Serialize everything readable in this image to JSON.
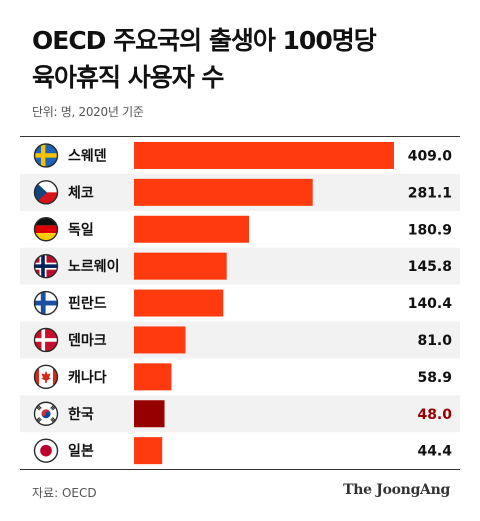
{
  "title_lines": [
    "OECD 주요국의 출생아 100명당",
    "육아휴직 사용자 수"
  ],
  "subtitle": "단위: 명, 2020년 기준",
  "source": "자료: OECD",
  "brand": "The JoongAng",
  "colors": {
    "bar": "#ff3a0f",
    "bar_highlight": "#960000",
    "value_highlight": "#960000",
    "value_default": "#111111",
    "row_even": "#f2f2f2"
  },
  "chart_data": {
    "type": "bar",
    "orientation": "horizontal",
    "categories": [
      "스웨덴",
      "체코",
      "독일",
      "노르웨이",
      "핀란드",
      "덴마크",
      "캐나다",
      "한국",
      "일본"
    ],
    "flags": [
      "sweden-flag",
      "czech-flag",
      "germany-flag",
      "norway-flag",
      "finland-flag",
      "denmark-flag",
      "canada-flag",
      "korea-flag",
      "japan-flag"
    ],
    "values": [
      409.0,
      281.1,
      180.9,
      145.8,
      140.4,
      81.0,
      58.9,
      48.0,
      44.4
    ],
    "value_labels": [
      "409.0",
      "281.1",
      "180.9",
      "145.8",
      "140.4",
      "81.0",
      "58.9",
      "48.0",
      "44.4"
    ],
    "highlight": "한국",
    "xlim": [
      0,
      409.0
    ],
    "grid": false,
    "legend": "none"
  }
}
